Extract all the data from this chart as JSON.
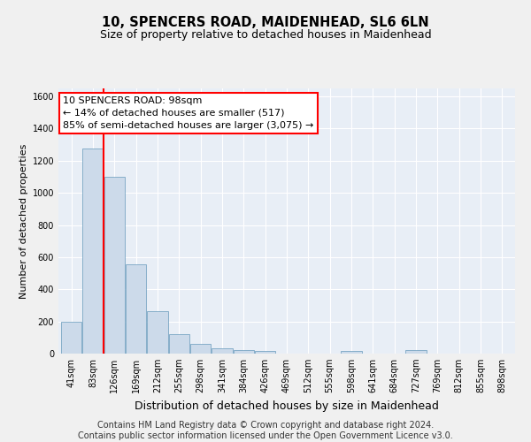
{
  "title": "10, SPENCERS ROAD, MAIDENHEAD, SL6 6LN",
  "subtitle": "Size of property relative to detached houses in Maidenhead",
  "xlabel": "Distribution of detached houses by size in Maidenhead",
  "ylabel": "Number of detached properties",
  "bar_color": "#ccdaea",
  "bar_edge_color": "#6699bb",
  "background_color": "#e8eef6",
  "grid_color": "#ffffff",
  "fig_background": "#f0f0f0",
  "categories": [
    "41sqm",
    "83sqm",
    "126sqm",
    "169sqm",
    "212sqm",
    "255sqm",
    "298sqm",
    "341sqm",
    "384sqm",
    "426sqm",
    "469sqm",
    "512sqm",
    "555sqm",
    "598sqm",
    "641sqm",
    "684sqm",
    "727sqm",
    "769sqm",
    "812sqm",
    "855sqm",
    "898sqm"
  ],
  "values": [
    200,
    1275,
    1100,
    555,
    265,
    120,
    58,
    33,
    22,
    15,
    0,
    0,
    0,
    15,
    0,
    0,
    20,
    0,
    0,
    0,
    0
  ],
  "ylim": [
    0,
    1650
  ],
  "yticks": [
    0,
    200,
    400,
    600,
    800,
    1000,
    1200,
    1400,
    1600
  ],
  "marker_line_index": 1.5,
  "annotation_title": "10 SPENCERS ROAD: 98sqm",
  "annotation_line1": "← 14% of detached houses are smaller (517)",
  "annotation_line2": "85% of semi-detached houses are larger (3,075) →",
  "footer_line1": "Contains HM Land Registry data © Crown copyright and database right 2024.",
  "footer_line2": "Contains public sector information licensed under the Open Government Licence v3.0.",
  "title_fontsize": 10.5,
  "subtitle_fontsize": 9,
  "ylabel_fontsize": 8,
  "xlabel_fontsize": 9,
  "tick_fontsize": 7,
  "annotation_fontsize": 8,
  "footer_fontsize": 7
}
